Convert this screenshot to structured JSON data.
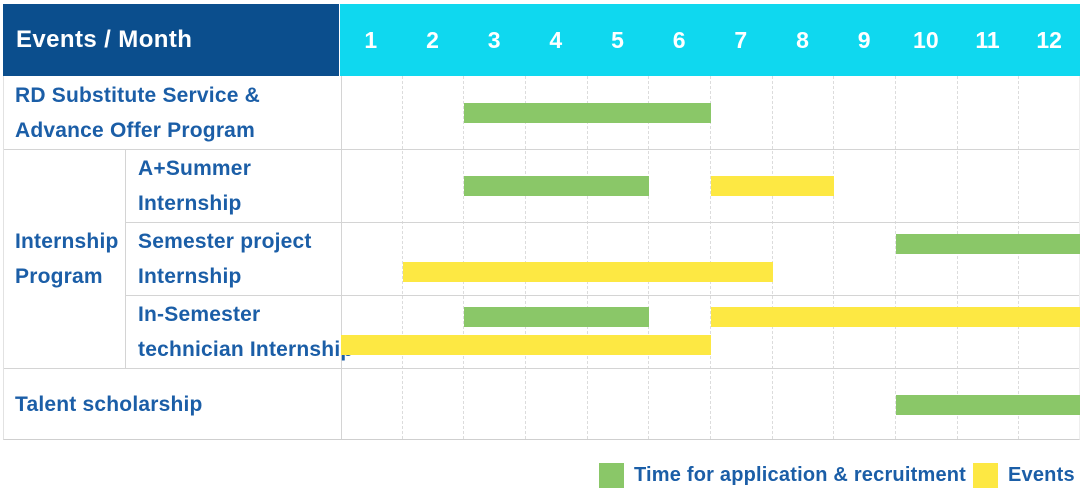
{
  "colors": {
    "header_bg": "#0b4e8d",
    "months_bg": "#0fd8ef",
    "green": "#8ac768",
    "yellow": "#fde843",
    "text_blue": "#1b5ea7"
  },
  "table": {
    "corner": "Events / Month",
    "months": [
      "1",
      "2",
      "3",
      "4",
      "5",
      "6",
      "7",
      "8",
      "9",
      "10",
      "11",
      "12"
    ],
    "row_labels": {
      "rd": [
        "RD Substitute Service &",
        "Advance Offer Program"
      ],
      "group": [
        "Internship",
        "Program"
      ],
      "a_summer": [
        "A+Summer",
        "Internship"
      ],
      "semester_project": [
        "Semester project",
        "Internship"
      ],
      "in_semester": [
        "In-Semester",
        "technician Internship"
      ],
      "talent": [
        "Talent scholarship"
      ]
    }
  },
  "legend": {
    "items": [
      {
        "color_key": "green",
        "label": "Time for application & recruitment"
      },
      {
        "color_key": "yellow",
        "label": "Events"
      }
    ]
  },
  "chart_data": {
    "type": "gantt",
    "x_unit": "month",
    "x_range": [
      1,
      12
    ],
    "title": "Events / Month",
    "legend": {
      "green": "Time for application & recruitment",
      "yellow": "Events"
    },
    "rows": [
      {
        "group": null,
        "label": "RD Substitute Service & Advance Offer Program",
        "bars": [
          {
            "type": "green",
            "start": 3,
            "end": 6,
            "line": "center"
          }
        ]
      },
      {
        "group": "Internship Program",
        "label": "A+Summer Internship",
        "bars": [
          {
            "type": "green",
            "start": 3,
            "end": 5,
            "line": "center"
          },
          {
            "type": "yellow",
            "start": 7,
            "end": 8,
            "line": "center"
          }
        ]
      },
      {
        "group": "Internship Program",
        "label": "Semester project Internship",
        "bars": [
          {
            "type": "green",
            "start": 10,
            "end": 12,
            "line": "upper"
          },
          {
            "type": "yellow",
            "start": 2,
            "end": 7,
            "line": "lower"
          }
        ]
      },
      {
        "group": "Internship Program",
        "label": "In-Semester technician Internship",
        "bars": [
          {
            "type": "green",
            "start": 3,
            "end": 5,
            "line": "upper"
          },
          {
            "type": "yellow",
            "start": 7,
            "end": 12,
            "line": "upper"
          },
          {
            "type": "yellow",
            "start": 1,
            "end": 6,
            "line": "lower"
          }
        ]
      },
      {
        "group": null,
        "label": "Talent scholarship",
        "bars": [
          {
            "type": "green",
            "start": 10,
            "end": 12,
            "line": "center"
          }
        ]
      }
    ]
  }
}
